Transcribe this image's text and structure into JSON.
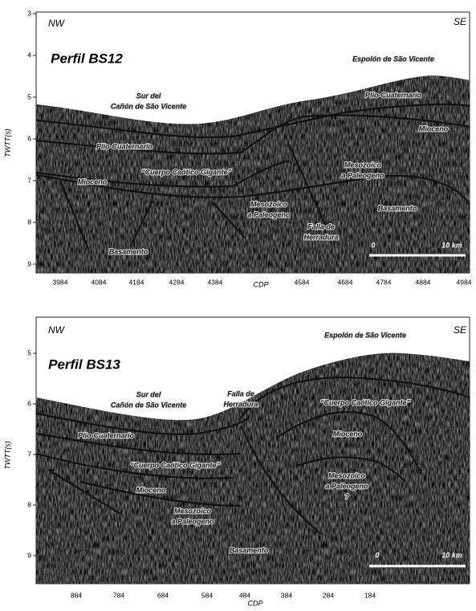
{
  "panels": [
    {
      "left_label": "NW",
      "right_label": "SE",
      "title": "Perfil BS12",
      "y_axis_label": "TWTT(s)",
      "x_axis_label": "CDP",
      "yticks": [
        "3",
        "4",
        "5",
        "6",
        "7",
        "8",
        "9"
      ],
      "xticks": [
        "3984",
        "4084",
        "4184",
        "4284",
        "4384",
        "4584",
        "4684",
        "4784",
        "4884",
        "4984"
      ],
      "annotations": [
        [
          "Espolón de São Vicente"
        ],
        [
          "Sur del",
          "Cañón de São Vicente"
        ],
        [
          "Plio-Cuaternario"
        ],
        [
          "Mioceno"
        ],
        [
          "Plio-Cuaternario"
        ],
        [
          "Mesozoico",
          "a Paleogeno"
        ],
        [
          "“Cuerpo Caótico Gigante”"
        ],
        [
          "Mioceno"
        ],
        [
          "Mesozoico",
          "a Paleogeno"
        ],
        [
          "Basamento"
        ],
        [
          "Falla de",
          "Herradura"
        ],
        [
          "Basamento"
        ]
      ],
      "scale_bar": [
        "0",
        "10 km"
      ]
    },
    {
      "left_label": "NW",
      "right_label": "SE",
      "title": "Perfil BS13",
      "y_axis_label": "TWTT(s)",
      "x_axis_label": "CDP",
      "yticks": [
        "5",
        "6",
        "7",
        "8",
        "9"
      ],
      "xticks": [
        "884",
        "784",
        "684",
        "584",
        "484",
        "384",
        "284",
        "184"
      ],
      "annotations": [
        [
          "Espolón de São Vicente"
        ],
        [
          "Sur del",
          "Cañón de São Vicente"
        ],
        [
          "Falla de",
          "Herradura"
        ],
        [
          "“Cuerpo Caótico Gigante”"
        ],
        [
          "Plio-Cuaternario"
        ],
        [
          "Mioceno"
        ],
        [
          "“Cuerpo Caótico Gigante”"
        ],
        [
          "Mesozoico",
          "a Paleogeno",
          "?"
        ],
        [
          "Mioceno"
        ],
        [
          "Mesozoico",
          "a Paleogeno"
        ],
        [
          "Basamento"
        ]
      ],
      "scale_bar": [
        "0",
        "10 km"
      ]
    }
  ]
}
